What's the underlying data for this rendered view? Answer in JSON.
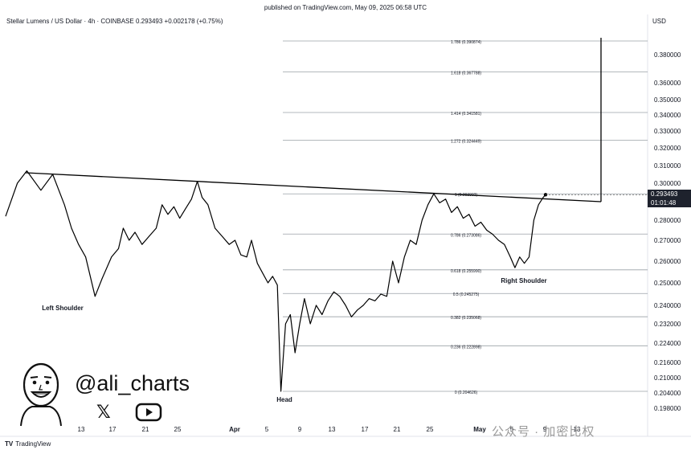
{
  "header": {
    "published": "published on TradingView.com, May 09, 2025 06:58 UTC",
    "symbol_line": "Stellar Lumens / US Dollar · 4h · COINBASE  0.293493  +0.002178 (+0.75%)",
    "currency": "USD"
  },
  "branding": {
    "handle": "@ali_charts",
    "tradingview": "TradingView",
    "watermark": "公众号 · 加密比权",
    "icons": [
      "avatar-illustration-icon",
      "x-logo-icon",
      "youtube-logo-icon"
    ]
  },
  "last_price": {
    "value": "0.293493",
    "countdown": "01:01:48"
  },
  "chart_data": {
    "type": "line",
    "title": "",
    "xlabel": "",
    "ylabel": "",
    "ylim": [
      0.198,
      0.39
    ],
    "y_ticks": [
      "0.380000",
      "0.360000",
      "0.350000",
      "0.340000",
      "0.330000",
      "0.320000",
      "0.310000",
      "0.300000",
      "0.290000",
      "0.280000",
      "0.270000",
      "0.260000",
      "0.250000",
      "0.240000",
      "0.232000",
      "0.224000",
      "0.216000",
      "0.210000",
      "0.204000",
      "0.198000"
    ],
    "x_ticks": [
      "13",
      "17",
      "21",
      "25",
      "Apr",
      "5",
      "9",
      "13",
      "17",
      "21",
      "25",
      "May",
      "5",
      "9",
      "13"
    ],
    "fib_levels": [
      {
        "label": "1.786 (0.390874)",
        "value": 0.390874
      },
      {
        "label": "1.618 (0.367788)",
        "value": 0.367788
      },
      {
        "label": "1.414 (0.341581)",
        "value": 0.341581
      },
      {
        "label": "1.272 (0.324449)",
        "value": 0.324449
      },
      {
        "label": "1 (0.293993)",
        "value": 0.293993
      },
      {
        "label": "0.786 (0.273086)",
        "value": 0.273086
      },
      {
        "label": "0.618 (0.255990)",
        "value": 0.25599
      },
      {
        "label": "0.5 (0.245275)",
        "value": 0.245275
      },
      {
        "label": "0.382 (0.235068)",
        "value": 0.235068
      },
      {
        "label": "0.236 (0.222898)",
        "value": 0.222898
      },
      {
        "label": "0 (0.204626)",
        "value": 0.204626
      }
    ],
    "annotations": [
      "Left Shoulder",
      "Head",
      "Right Shoulder"
    ],
    "series": [
      {
        "values": [
          [
            0,
            0.282
          ],
          [
            1,
            0.3
          ],
          [
            1.8,
            0.307
          ],
          [
            3,
            0.296
          ],
          [
            4,
            0.305
          ],
          [
            5,
            0.288
          ],
          [
            5.6,
            0.276
          ],
          [
            6.2,
            0.268
          ],
          [
            6.8,
            0.262
          ],
          [
            7.6,
            0.244
          ],
          [
            8.2,
            0.252
          ],
          [
            9,
            0.262
          ],
          [
            9.6,
            0.266
          ],
          [
            10,
            0.276
          ],
          [
            10.5,
            0.27
          ],
          [
            11,
            0.274
          ],
          [
            11.6,
            0.268
          ],
          [
            12.2,
            0.272
          ],
          [
            12.8,
            0.276
          ],
          [
            13.3,
            0.288
          ],
          [
            13.8,
            0.283
          ],
          [
            14.3,
            0.287
          ],
          [
            14.8,
            0.281
          ],
          [
            15.3,
            0.286
          ],
          [
            15.8,
            0.291
          ],
          [
            16.3,
            0.301
          ],
          [
            16.7,
            0.292
          ],
          [
            17.2,
            0.288
          ],
          [
            17.8,
            0.276
          ],
          [
            18.4,
            0.272
          ],
          [
            19,
            0.268
          ],
          [
            19.5,
            0.27
          ],
          [
            20,
            0.263
          ],
          [
            20.5,
            0.262
          ],
          [
            20.9,
            0.27
          ],
          [
            21.4,
            0.259
          ],
          [
            21.9,
            0.254
          ],
          [
            22.3,
            0.25
          ],
          [
            22.7,
            0.253
          ],
          [
            23.1,
            0.249
          ],
          [
            23.4,
            0.204626
          ],
          [
            23.8,
            0.232
          ],
          [
            24.2,
            0.236
          ],
          [
            24.6,
            0.22
          ],
          [
            25,
            0.232
          ],
          [
            25.4,
            0.243
          ],
          [
            25.9,
            0.232
          ],
          [
            26.4,
            0.24
          ],
          [
            26.9,
            0.236
          ],
          [
            27.4,
            0.242
          ],
          [
            27.9,
            0.246
          ],
          [
            28.4,
            0.244
          ],
          [
            28.9,
            0.24
          ],
          [
            29.4,
            0.235
          ],
          [
            29.9,
            0.238
          ],
          [
            30.4,
            0.24
          ],
          [
            30.9,
            0.243
          ],
          [
            31.4,
            0.242
          ],
          [
            31.9,
            0.245
          ],
          [
            32.4,
            0.244
          ],
          [
            32.9,
            0.26
          ],
          [
            33.4,
            0.25
          ],
          [
            33.9,
            0.262
          ],
          [
            34.4,
            0.27
          ],
          [
            34.9,
            0.268
          ],
          [
            35.4,
            0.28
          ],
          [
            35.9,
            0.288
          ],
          [
            36.4,
            0.293993
          ],
          [
            36.9,
            0.289
          ],
          [
            37.4,
            0.291
          ],
          [
            37.9,
            0.284
          ],
          [
            38.4,
            0.287
          ],
          [
            38.9,
            0.281
          ],
          [
            39.4,
            0.283
          ],
          [
            39.9,
            0.277
          ],
          [
            40.4,
            0.279
          ],
          [
            40.9,
            0.275
          ],
          [
            41.4,
            0.273
          ],
          [
            41.9,
            0.27
          ],
          [
            42.4,
            0.268
          ],
          [
            42.9,
            0.262
          ],
          [
            43.3,
            0.257
          ],
          [
            43.7,
            0.262
          ],
          [
            44.1,
            0.259
          ],
          [
            44.5,
            0.262
          ],
          [
            44.9,
            0.28
          ],
          [
            45.3,
            0.288
          ],
          [
            45.7,
            0.292
          ],
          [
            45.9,
            0.293493
          ]
        ]
      }
    ]
  }
}
